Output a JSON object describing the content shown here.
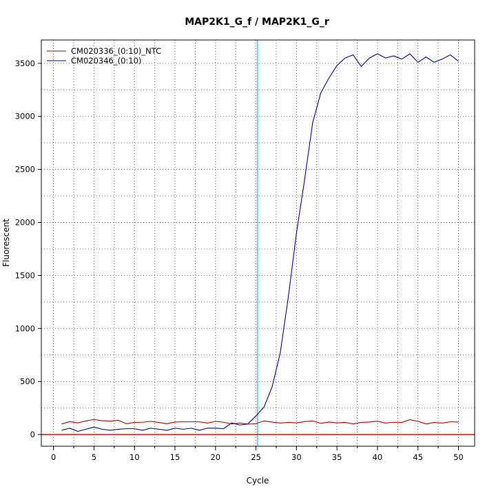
{
  "chart_data": {
    "type": "line",
    "title": "MAP2K1_G_f / MAP2K1_G_r",
    "xlabel": "Cycle",
    "ylabel": "Fluorescent",
    "xlim": [
      -1.5,
      52
    ],
    "ylim": [
      -110,
      3720
    ],
    "x_ticks": [
      0,
      5,
      10,
      15,
      20,
      25,
      30,
      35,
      40,
      45,
      50
    ],
    "x_minor_ticks": [
      2.5,
      7.5,
      12.5,
      17.5,
      22.5,
      27.5,
      32.5,
      37.5,
      42.5,
      47.5
    ],
    "y_ticks": [
      0,
      500,
      1000,
      1500,
      2000,
      2500,
      3000,
      3500
    ],
    "y_grid_extra": [
      250,
      750,
      1250,
      1750,
      2250,
      2750,
      3250
    ],
    "grid": "dotted",
    "legend_position": "top-left",
    "threshold_x": 25.2,
    "threshold_color": "#00d0d0",
    "baseline_y": 0,
    "baseline_color": "#c00000",
    "series": [
      {
        "name": "CM020336_(0:10)_NTC",
        "color": "#a00000",
        "x": [
          1,
          2,
          3,
          4,
          5,
          6,
          7,
          8,
          9,
          10,
          11,
          12,
          13,
          14,
          15,
          16,
          17,
          18,
          19,
          20,
          21,
          22,
          23,
          24,
          25,
          26,
          27,
          28,
          29,
          30,
          31,
          32,
          33,
          34,
          35,
          36,
          37,
          38,
          39,
          40,
          41,
          42,
          43,
          44,
          45,
          46,
          47,
          48,
          49,
          50
        ],
        "y": [
          100,
          122,
          110,
          128,
          142,
          130,
          126,
          135,
          102,
          115,
          116,
          124,
          114,
          102,
          118,
          120,
          120,
          120,
          108,
          124,
          116,
          100,
          108,
          98,
          102,
          128,
          118,
          108,
          115,
          110,
          122,
          128,
          106,
          118,
          110,
          115,
          100,
          115,
          118,
          126,
          108,
          116,
          114,
          140,
          125,
          100,
          114,
          108,
          120,
          118
        ]
      },
      {
        "name": "CM020346_(0:10)",
        "color": "#000080",
        "x": [
          1,
          2,
          3,
          4,
          5,
          6,
          7,
          8,
          9,
          10,
          11,
          12,
          13,
          14,
          15,
          16,
          17,
          18,
          19,
          20,
          21,
          22,
          23,
          24,
          25,
          26,
          27,
          28,
          29,
          30,
          31,
          32,
          33,
          34,
          35,
          36,
          37,
          38,
          39,
          40,
          41,
          42,
          43,
          44,
          45,
          46,
          47,
          48,
          49,
          50
        ],
        "y": [
          40,
          60,
          30,
          50,
          70,
          50,
          40,
          50,
          55,
          55,
          40,
          60,
          50,
          40,
          60,
          50,
          60,
          40,
          60,
          60,
          55,
          110,
          90,
          100,
          175,
          260,
          450,
          770,
          1300,
          1900,
          2400,
          2940,
          3220,
          3360,
          3480,
          3550,
          3580,
          3470,
          3550,
          3590,
          3550,
          3570,
          3540,
          3590,
          3510,
          3560,
          3510,
          3540,
          3580,
          3520
        ]
      }
    ]
  }
}
